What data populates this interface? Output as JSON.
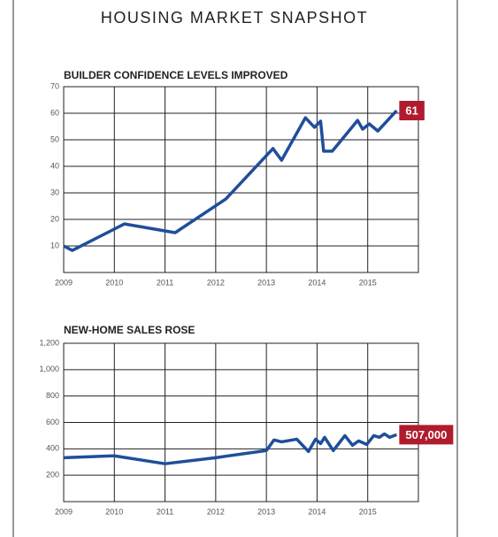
{
  "title": "HOUSING MARKET SNAPSHOT",
  "chart_data": [
    {
      "type": "line",
      "title": "BUILDER CONFIDENCE LEVELS IMPROVED",
      "x": [
        2009.0,
        2009.17,
        2010.2,
        2011.2,
        2012.2,
        2013.13,
        2013.3,
        2013.77,
        2013.95,
        2014.07,
        2014.13,
        2014.3,
        2014.8,
        2014.9,
        2015.03,
        2015.2,
        2015.57
      ],
      "series": [
        {
          "color": "#1f4e9a",
          "values": [
            10,
            8.3,
            18.3,
            15,
            27.7,
            46.7,
            42.3,
            58.3,
            54.7,
            57,
            45.7,
            45.7,
            57.3,
            54,
            56,
            53.3,
            61
          ]
        }
      ],
      "label_color": "#b01c2e",
      "xlim": [
        2009,
        2016
      ],
      "xticks": [
        2009,
        2010,
        2011,
        2012,
        2013,
        2014,
        2015
      ],
      "ylim": [
        0,
        70
      ],
      "yticks": [
        10,
        20,
        30,
        40,
        50,
        60,
        70
      ],
      "grid": true
    },
    {
      "type": "line",
      "title": "NEW-HOME SALES ROSE",
      "x": [
        2009.0,
        2010.0,
        2011.0,
        2012.0,
        2013.0,
        2013.15,
        2013.3,
        2013.6,
        2013.83,
        2013.97,
        2014.07,
        2014.15,
        2014.32,
        2014.55,
        2014.7,
        2014.82,
        2014.98,
        2015.12,
        2015.23,
        2015.33,
        2015.43,
        2015.57
      ],
      "series": [
        {
          "color": "#1f4e9a",
          "values": [
            333,
            347,
            287,
            333,
            387,
            467,
            453,
            473,
            380,
            473,
            440,
            487,
            387,
            500,
            427,
            460,
            433,
            500,
            487,
            513,
            487,
            507
          ],
          "value_labels": [
            null,
            null,
            null,
            null,
            null,
            null,
            null,
            null,
            null,
            null,
            null,
            null,
            null,
            null,
            null,
            null,
            null,
            null,
            null,
            null,
            null,
            "507,000"
          ]
        }
      ],
      "label_color": "#b01c2e",
      "xlim": [
        2009,
        2016
      ],
      "xticks": [
        2009,
        2010,
        2011,
        2012,
        2013,
        2014,
        2015
      ],
      "ylim": [
        0,
        1200
      ],
      "yticks": [
        200,
        400,
        600,
        800,
        {
          "value": 1000,
          "label": "1,000"
        },
        {
          "value": 1200,
          "label": "1,200"
        }
      ],
      "grid": true
    }
  ]
}
